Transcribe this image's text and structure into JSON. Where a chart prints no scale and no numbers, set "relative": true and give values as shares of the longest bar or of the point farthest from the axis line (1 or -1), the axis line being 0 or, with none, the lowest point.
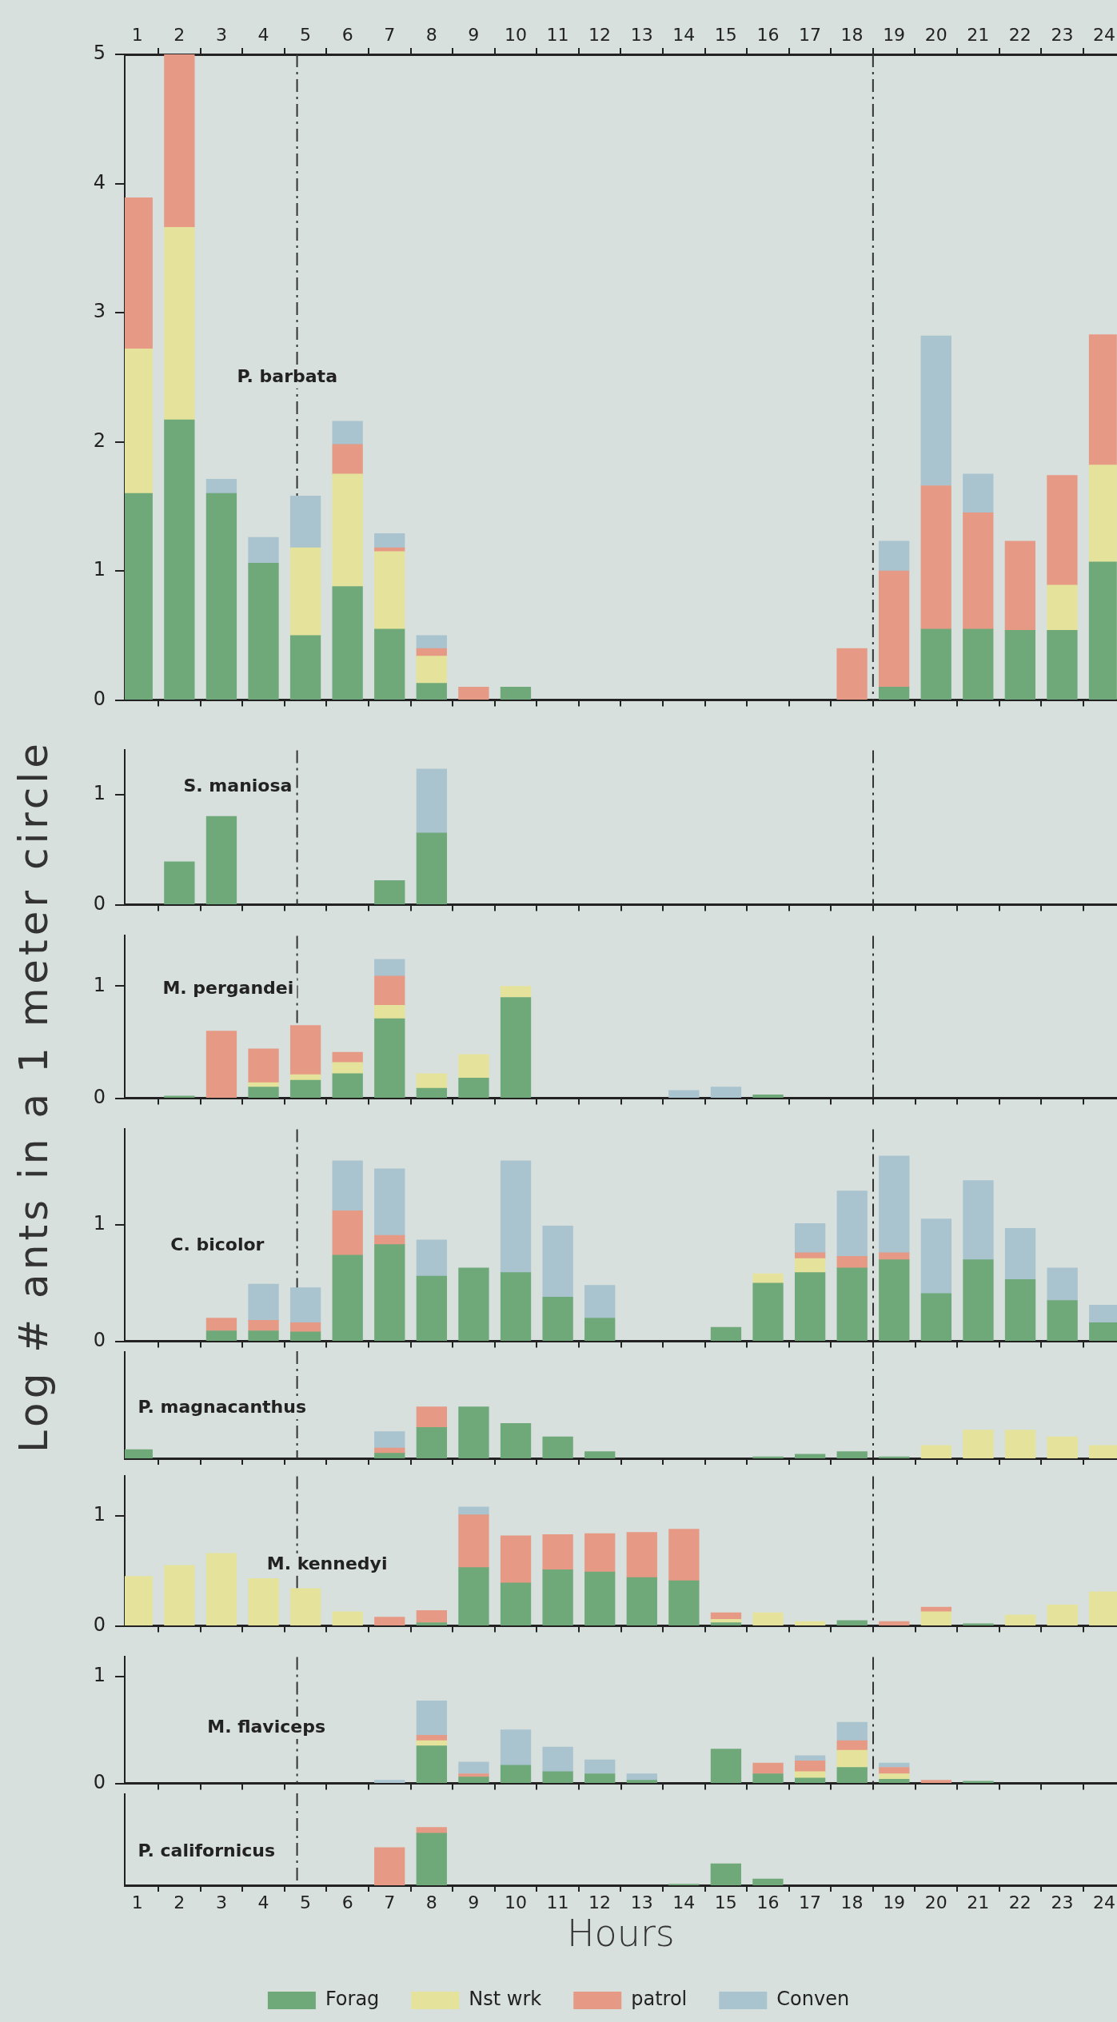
{
  "chart_data": [
    {
      "type": "bar",
      "title": "P. barbata",
      "stacked": true,
      "x": [
        1,
        2,
        3,
        4,
        5,
        6,
        7,
        8,
        9,
        10,
        11,
        12,
        13,
        14,
        15,
        16,
        17,
        18,
        19,
        20,
        21,
        22,
        23,
        24
      ],
      "xlim": [
        0.7,
        24.3
      ],
      "xticks": [
        1,
        2,
        3,
        4,
        5,
        6,
        7,
        8,
        9,
        10,
        11,
        12,
        13,
        14,
        15,
        16,
        17,
        18,
        19,
        20,
        21,
        22,
        23,
        24
      ],
      "ylim": [
        0,
        5
      ],
      "yticks": [
        0,
        1,
        2,
        3,
        4,
        5
      ],
      "ref_lines": [
        {
          "axis": "x",
          "value": 4.8,
          "color": "#333333",
          "line_style": "dashed"
        },
        {
          "axis": "x",
          "value": 18.5,
          "color": "#333333",
          "line_style": "dashed"
        }
      ],
      "series": [
        {
          "color": "#6fa97a",
          "values": [
            1.6,
            2.17,
            1.6,
            1.06,
            0.5,
            0.88,
            0.55,
            0.13,
            null,
            0.1,
            null,
            null,
            null,
            null,
            null,
            null,
            null,
            null,
            0.1,
            0.55,
            0.55,
            0.54,
            0.54,
            1.07
          ]
        },
        {
          "color": "#e5e39b",
          "values": [
            1.12,
            1.49,
            null,
            null,
            0.68,
            0.87,
            0.6,
            0.21,
            null,
            null,
            null,
            null,
            null,
            null,
            null,
            null,
            null,
            null,
            null,
            null,
            null,
            null,
            0.35,
            0.75
          ]
        },
        {
          "color": "#e69a85",
          "values": [
            1.17,
            1.34,
            null,
            null,
            null,
            0.23,
            0.03,
            0.06,
            0.1,
            null,
            null,
            null,
            null,
            null,
            null,
            null,
            null,
            0.4,
            0.9,
            1.11,
            0.9,
            0.69,
            0.85,
            1.01
          ]
        },
        {
          "color": "#a9c3cf",
          "values": [
            null,
            null,
            0.11,
            0.2,
            0.4,
            0.18,
            0.11,
            0.1,
            null,
            null,
            null,
            null,
            null,
            null,
            null,
            null,
            null,
            null,
            0.23,
            1.16,
            0.3,
            null,
            null,
            null
          ]
        }
      ]
    },
    {
      "type": "bar",
      "title": "S. maniosa",
      "stacked": true,
      "tick_labels": "y",
      "x": [
        2,
        3,
        4,
        5,
        6,
        7,
        8
      ],
      "xlim": [
        0.7,
        24.3
      ],
      "xticks": [
        1,
        2,
        3,
        4,
        5,
        6,
        7,
        8,
        9,
        10,
        11,
        12,
        13,
        14,
        15,
        16,
        17,
        18,
        19,
        20,
        21,
        22,
        23,
        24
      ],
      "ylim": [
        0,
        1.4
      ],
      "yticks": [
        0,
        1
      ],
      "ref_lines": [
        {
          "axis": "x",
          "value": 4.8,
          "color": "#333333",
          "line_style": "dashed"
        },
        {
          "axis": "x",
          "value": 18.5,
          "color": "#333333",
          "line_style": "dashed"
        }
      ],
      "series": [
        {
          "color": "#6fa97a",
          "values": [
            0.39,
            0.8,
            null,
            null,
            null,
            0.22,
            0.65
          ]
        },
        {
          "color": "#a9c3cf",
          "values": [
            null,
            null,
            null,
            null,
            null,
            null,
            0.58
          ]
        }
      ]
    },
    {
      "type": "bar",
      "title": "M. pergandei",
      "stacked": true,
      "tick_labels": "y",
      "x": [
        2,
        3,
        4,
        5,
        6,
        7,
        8,
        9,
        10,
        11,
        12,
        13,
        14,
        15,
        16
      ],
      "xlim": [
        0.7,
        24.3
      ],
      "xticks": [
        1,
        2,
        3,
        4,
        5,
        6,
        7,
        8,
        9,
        10,
        11,
        12,
        13,
        14,
        15,
        16,
        17,
        18,
        19,
        20,
        21,
        22,
        23,
        24
      ],
      "ylim": [
        0,
        1.45
      ],
      "yticks": [
        0,
        1
      ],
      "ref_lines": [
        {
          "axis": "x",
          "value": 4.8,
          "color": "#333333",
          "line_style": "dashed"
        },
        {
          "axis": "x",
          "value": 18.5,
          "color": "#333333",
          "line_style": "dashed"
        }
      ],
      "series": [
        {
          "color": "#6fa97a",
          "values": [
            0.02,
            null,
            0.1,
            0.16,
            0.22,
            0.71,
            0.09,
            0.18,
            0.9,
            null,
            null,
            null,
            null,
            null,
            0.03
          ]
        },
        {
          "color": "#e5e39b",
          "values": [
            null,
            null,
            0.04,
            0.05,
            0.1,
            0.12,
            0.13,
            0.21,
            0.1,
            null,
            null,
            null,
            null,
            null,
            null
          ]
        },
        {
          "color": "#e69a85",
          "values": [
            null,
            0.6,
            0.3,
            0.44,
            0.09,
            0.26,
            null,
            null,
            null,
            null,
            null,
            null,
            null,
            null,
            null
          ]
        },
        {
          "color": "#a9c3cf",
          "values": [
            null,
            null,
            null,
            null,
            null,
            0.15,
            null,
            null,
            null,
            null,
            null,
            null,
            0.07,
            0.1,
            null
          ]
        }
      ]
    },
    {
      "type": "bar",
      "title": "C. bicolor",
      "ylabel": "Log # ants in a 1 meter circle",
      "stacked": true,
      "tick_labels": "y",
      "x": [
        3,
        4,
        5,
        6,
        7,
        8,
        9,
        10,
        11,
        12,
        13,
        14,
        15,
        16,
        17,
        18,
        19,
        20,
        21,
        22,
        23,
        24
      ],
      "xlim": [
        0.7,
        24.3
      ],
      "xticks": [
        1,
        2,
        3,
        4,
        5,
        6,
        7,
        8,
        9,
        10,
        11,
        12,
        13,
        14,
        15,
        16,
        17,
        18,
        19,
        20,
        21,
        22,
        23,
        24
      ],
      "ylim": [
        0,
        1.82
      ],
      "yticks": [
        0,
        1
      ],
      "ref_lines": [
        {
          "axis": "x",
          "value": 4.8,
          "color": "#333333",
          "line_style": "dashed"
        },
        {
          "axis": "x",
          "value": 18.5,
          "color": "#333333",
          "line_style": "dashed"
        }
      ],
      "series": [
        {
          "color": "#6fa97a",
          "values": [
            0.09,
            0.09,
            0.08,
            0.74,
            0.83,
            0.56,
            0.63,
            0.59,
            0.38,
            0.2,
            null,
            null,
            0.12,
            0.5,
            0.59,
            0.63,
            0.7,
            0.41,
            0.7,
            0.53,
            0.35,
            0.16
          ]
        },
        {
          "color": "#e5e39b",
          "values": [
            null,
            null,
            null,
            null,
            null,
            null,
            null,
            null,
            null,
            null,
            null,
            null,
            null,
            0.08,
            0.12,
            null,
            null,
            null,
            null,
            null,
            null,
            null
          ]
        },
        {
          "color": "#e69a85",
          "values": [
            0.11,
            0.09,
            0.08,
            0.38,
            0.08,
            null,
            null,
            null,
            null,
            null,
            null,
            null,
            null,
            null,
            0.05,
            0.1,
            0.06,
            null,
            null,
            null,
            null,
            null
          ]
        },
        {
          "color": "#a9c3cf",
          "values": [
            null,
            0.31,
            0.3,
            0.43,
            0.57,
            0.31,
            null,
            0.96,
            0.61,
            0.28,
            null,
            null,
            null,
            null,
            0.25,
            0.56,
            0.83,
            0.64,
            0.68,
            0.44,
            0.28,
            0.15
          ]
        }
      ]
    },
    {
      "type": "bar",
      "title": "P. magnacanthus",
      "stacked": true,
      "relative": true,
      "tick_labels": false,
      "x": [
        1,
        2,
        3,
        4,
        5,
        6,
        7,
        8,
        9,
        10,
        11,
        12,
        13,
        14,
        15,
        16,
        17,
        18,
        19,
        20,
        21,
        22,
        23,
        24
      ],
      "xlim": [
        0.7,
        24.3
      ],
      "xticks": [
        1,
        2,
        3,
        4,
        5,
        6,
        7,
        8,
        9,
        10,
        11,
        12,
        13,
        14,
        15,
        16,
        17,
        18,
        19,
        20,
        21,
        22,
        23,
        24
      ],
      "ref_lines": [
        {
          "axis": "x",
          "value": 4.8,
          "color": "#333333",
          "line_style": "dashed"
        },
        {
          "axis": "x",
          "value": 18.5,
          "color": "#333333",
          "line_style": "dashed"
        }
      ],
      "series": [
        {
          "color": "#6fa97a",
          "values": [
            0.17,
            null,
            null,
            null,
            null,
            null,
            0.1,
            0.6,
            1.0,
            0.68,
            0.42,
            0.13,
            null,
            null,
            null,
            0.03,
            0.08,
            0.13,
            0.03,
            null,
            null,
            null,
            null,
            null
          ]
        },
        {
          "color": "#e5e39b",
          "values": [
            null,
            null,
            null,
            null,
            null,
            null,
            null,
            null,
            null,
            null,
            null,
            null,
            null,
            null,
            null,
            null,
            null,
            null,
            null,
            0.25,
            0.55,
            0.55,
            0.42,
            0.25
          ]
        },
        {
          "color": "#e69a85",
          "values": [
            null,
            null,
            null,
            null,
            null,
            null,
            0.1,
            0.4,
            null,
            null,
            null,
            null,
            null,
            null,
            null,
            null,
            null,
            null,
            null,
            null,
            null,
            null,
            null,
            null
          ]
        },
        {
          "color": "#a9c3cf",
          "values": [
            null,
            null,
            null,
            null,
            null,
            null,
            0.32,
            null,
            null,
            null,
            null,
            null,
            null,
            null,
            null,
            null,
            null,
            null,
            null,
            null,
            null,
            null,
            null,
            null
          ]
        }
      ]
    },
    {
      "type": "bar",
      "title": "M. kennedyi",
      "stacked": true,
      "tick_labels": "y",
      "x": [
        1,
        2,
        3,
        4,
        5,
        6,
        7,
        8,
        9,
        10,
        11,
        12,
        13,
        14,
        15,
        16,
        17,
        18,
        19,
        20,
        21,
        22,
        23,
        24
      ],
      "xlim": [
        0.7,
        24.3
      ],
      "xticks": [
        1,
        2,
        3,
        4,
        5,
        6,
        7,
        8,
        9,
        10,
        11,
        12,
        13,
        14,
        15,
        16,
        17,
        18,
        19,
        20,
        21,
        22,
        23,
        24
      ],
      "ylim": [
        0,
        1.36
      ],
      "yticks": [
        0,
        1
      ],
      "ref_lines": [
        {
          "axis": "x",
          "value": 4.8,
          "color": "#333333",
          "line_style": "dashed"
        },
        {
          "axis": "x",
          "value": 18.5,
          "color": "#333333",
          "line_style": "dashed"
        }
      ],
      "series": [
        {
          "color": "#6fa97a",
          "values": [
            null,
            null,
            null,
            null,
            null,
            null,
            null,
            0.03,
            0.53,
            0.39,
            0.51,
            0.49,
            0.44,
            0.41,
            0.03,
            null,
            null,
            0.05,
            null,
            null,
            0.02,
            null,
            null,
            null
          ]
        },
        {
          "color": "#e5e39b",
          "values": [
            0.45,
            0.55,
            0.66,
            0.43,
            0.34,
            0.13,
            null,
            null,
            null,
            null,
            null,
            null,
            null,
            null,
            0.03,
            0.12,
            0.04,
            null,
            null,
            0.13,
            null,
            0.1,
            0.19,
            0.31
          ]
        },
        {
          "color": "#e69a85",
          "values": [
            null,
            null,
            null,
            null,
            null,
            null,
            0.08,
            0.11,
            0.48,
            0.43,
            0.32,
            0.35,
            0.41,
            0.47,
            0.06,
            null,
            null,
            null,
            0.04,
            0.04,
            null,
            null,
            null,
            null
          ]
        },
        {
          "color": "#a9c3cf",
          "values": [
            null,
            null,
            null,
            null,
            null,
            null,
            null,
            null,
            0.07,
            null,
            null,
            null,
            null,
            null,
            null,
            null,
            null,
            null,
            null,
            null,
            null,
            null,
            null,
            null
          ]
        }
      ]
    },
    {
      "type": "bar",
      "title": "M. flaviceps",
      "stacked": true,
      "tick_labels": "y",
      "x": [
        7,
        8,
        9,
        10,
        11,
        12,
        13,
        14,
        15,
        16,
        17,
        18,
        19,
        20,
        21
      ],
      "xlim": [
        0.7,
        24.3
      ],
      "xticks": [
        1,
        2,
        3,
        4,
        5,
        6,
        7,
        8,
        9,
        10,
        11,
        12,
        13,
        14,
        15,
        16,
        17,
        18,
        19,
        20,
        21,
        22,
        23,
        24
      ],
      "ylim": [
        0,
        1.18
      ],
      "yticks": [
        0,
        1
      ],
      "ref_lines": [
        {
          "axis": "x",
          "value": 4.8,
          "color": "#333333",
          "line_style": "dashed"
        },
        {
          "axis": "x",
          "value": 18.5,
          "color": "#333333",
          "line_style": "dashed"
        }
      ],
      "series": [
        {
          "color": "#6fa97a",
          "values": [
            null,
            0.35,
            0.06,
            0.17,
            0.11,
            0.09,
            0.03,
            null,
            0.32,
            0.09,
            0.05,
            0.15,
            0.04,
            null,
            0.02
          ]
        },
        {
          "color": "#e5e39b",
          "values": [
            null,
            0.05,
            null,
            null,
            null,
            null,
            null,
            null,
            null,
            null,
            0.06,
            0.16,
            0.05,
            null,
            null
          ]
        },
        {
          "color": "#e69a85",
          "values": [
            null,
            0.05,
            0.03,
            null,
            null,
            null,
            null,
            null,
            null,
            0.1,
            0.1,
            0.09,
            0.06,
            0.03,
            null
          ]
        },
        {
          "color": "#a9c3cf",
          "values": [
            0.03,
            0.32,
            0.11,
            0.33,
            0.23,
            0.13,
            0.06,
            null,
            null,
            null,
            0.05,
            0.17,
            0.04,
            null,
            null
          ]
        }
      ]
    },
    {
      "type": "bar",
      "title": "P. californicus",
      "xlabel": "Hours",
      "stacked": true,
      "relative": true,
      "tick_labels": "x",
      "legend": "bottom",
      "x": [
        7,
        8,
        9,
        10,
        11,
        12,
        13,
        14,
        15,
        16
      ],
      "xlim": [
        0.7,
        24.3
      ],
      "xticks": [
        1,
        2,
        3,
        4,
        5,
        6,
        7,
        8,
        9,
        10,
        11,
        12,
        13,
        14,
        15,
        16,
        17,
        18,
        19,
        20,
        21,
        22,
        23,
        24
      ],
      "ref_lines": [
        {
          "axis": "x",
          "value": 4.8,
          "color": "#333333",
          "line_style": "dashed"
        }
      ],
      "series": [
        {
          "name": "Forag",
          "color": "#6fa97a",
          "values": [
            null,
            0.9,
            null,
            null,
            null,
            null,
            null,
            0.02,
            0.37,
            0.11
          ]
        },
        {
          "name": "Nst wrk",
          "color": "#e5e39b",
          "values": [
            null,
            null,
            null,
            null,
            null,
            null,
            null,
            null,
            null,
            null
          ]
        },
        {
          "name": "patrol",
          "color": "#e69a85",
          "values": [
            0.65,
            0.1,
            null,
            null,
            null,
            null,
            null,
            null,
            null,
            null
          ]
        },
        {
          "name": "Conven",
          "color": "#a9c3cf",
          "values": [
            null,
            null,
            null,
            null,
            null,
            null,
            null,
            null,
            null,
            null
          ]
        }
      ]
    }
  ]
}
